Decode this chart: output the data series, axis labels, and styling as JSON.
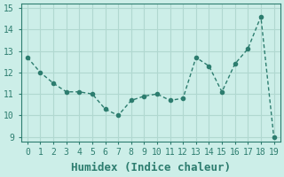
{
  "x": [
    0,
    1,
    2,
    3,
    4,
    5,
    6,
    7,
    8,
    9,
    10,
    11,
    12,
    13,
    14,
    15,
    16,
    17,
    18,
    19
  ],
  "y": [
    12.7,
    12.0,
    11.5,
    11.1,
    11.1,
    11.0,
    10.3,
    10.0,
    10.7,
    10.9,
    11.0,
    10.7,
    10.8,
    12.7,
    12.3,
    11.1,
    12.4,
    13.1,
    14.6,
    9.0
  ],
  "line_color": "#2d7d6f",
  "marker": "o",
  "marker_size": 3,
  "bg_color": "#cceee8",
  "grid_color": "#b0d8d0",
  "tick_color": "#2d7d6f",
  "xlabel": "Humidex (Indice chaleur)",
  "xlabel_fontsize": 9,
  "ylabel": "",
  "xlim": [
    -0.5,
    19.5
  ],
  "ylim": [
    8.8,
    15.2
  ],
  "yticks": [
    9,
    10,
    11,
    12,
    13,
    14,
    15
  ],
  "xticks": [
    0,
    1,
    2,
    3,
    4,
    5,
    6,
    7,
    8,
    9,
    10,
    11,
    12,
    13,
    14,
    15,
    16,
    17,
    18,
    19
  ],
  "title": ""
}
